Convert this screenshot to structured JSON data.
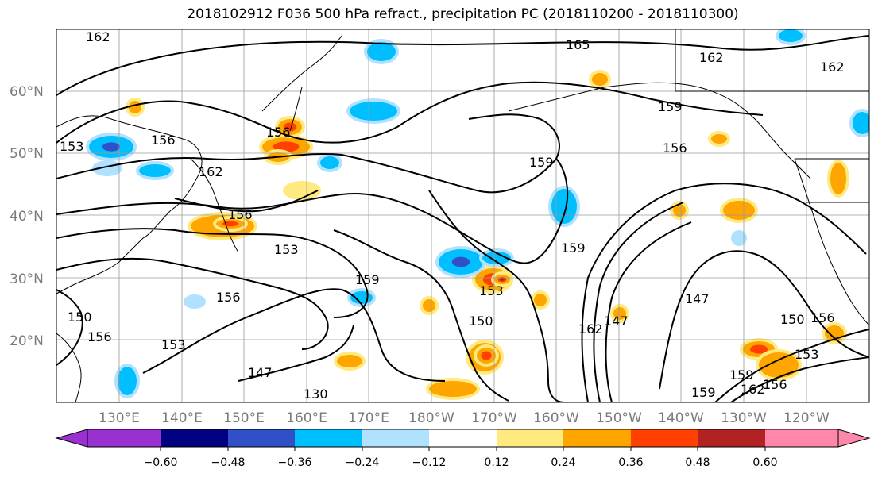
{
  "title": "2018102912 F036 500 hPa refract., precipitation PC (2018110200 - 2018110300)",
  "lat_labels": [
    "60°N",
    "50°N",
    "40°N",
    "30°N",
    "20°N"
  ],
  "lon_labels": [
    "130°E",
    "140°E",
    "150°E",
    "160°E",
    "170°E",
    "180°W",
    "170°W",
    "160°W",
    "150°W",
    "140°W",
    "130°W",
    "120°W"
  ],
  "contour_labels": [
    "162",
    "165",
    "162",
    "162",
    "159",
    "156",
    "156",
    "156",
    "162",
    "156",
    "153",
    "159",
    "156",
    "153",
    "147",
    "130",
    "159",
    "150",
    "153",
    "159",
    "162",
    "147",
    "147",
    "150",
    "156",
    "153",
    "159",
    "162",
    "156",
    "159",
    "150",
    "156",
    "153"
  ],
  "colorbar": {
    "colors": [
      "#9b30d0",
      "#000080",
      "#3050c8",
      "#00bfff",
      "#b0e2ff",
      "#ffffff",
      "#ffea80",
      "#ffa500",
      "#ff4000",
      "#b22222",
      "#ff88aa"
    ],
    "ticks": [
      "−0.60",
      "−0.48",
      "−0.36",
      "−0.24",
      "−0.12",
      "0.12",
      "0.24",
      "0.36",
      "0.48",
      "0.60"
    ]
  },
  "map": {
    "contour_color": "#000000",
    "positive_colors": [
      "#ffea80",
      "#ffa500",
      "#ff4000",
      "#b22222"
    ],
    "negative_colors": [
      "#b0e2ff",
      "#00bfff",
      "#3050c8",
      "#9b30d0"
    ]
  }
}
